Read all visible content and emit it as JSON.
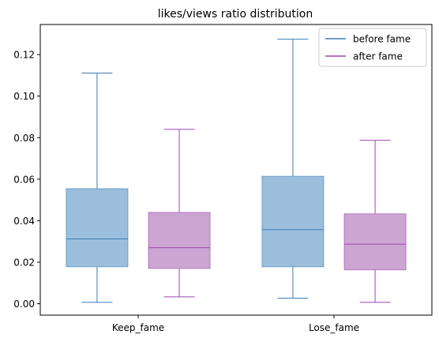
{
  "chart_data": {
    "type": "box",
    "title": "likes/views ratio distribution",
    "xlabel": "",
    "ylabel": "",
    "ylim": [
      -0.0055,
      0.1345
    ],
    "yticks": [
      0.0,
      0.02,
      0.04,
      0.06,
      0.08,
      0.1,
      0.12
    ],
    "ytick_labels": [
      "0.00",
      "0.02",
      "0.04",
      "0.06",
      "0.08",
      "0.10",
      "0.12"
    ],
    "categories": [
      "Keep_fame",
      "Lose_fame"
    ],
    "legend_position": "top-right",
    "grid": false,
    "series": [
      {
        "name": "before fame",
        "color": "#3a7fb8",
        "fill": "#9bbedc",
        "boxes": [
          {
            "whisker_low": 0.0007,
            "q1": 0.0178,
            "median": 0.0312,
            "q3": 0.0554,
            "whisker_high": 0.1111
          },
          {
            "whisker_low": 0.0027,
            "q1": 0.0178,
            "median": 0.0357,
            "q3": 0.0614,
            "whisker_high": 0.1274
          }
        ]
      },
      {
        "name": "after fame",
        "color": "#9b48ac",
        "fill": "#cca5d3",
        "boxes": [
          {
            "whisker_low": 0.0033,
            "q1": 0.017,
            "median": 0.027,
            "q3": 0.044,
            "whisker_high": 0.084
          },
          {
            "whisker_low": 0.0007,
            "q1": 0.0163,
            "median": 0.0287,
            "q3": 0.0433,
            "whisker_high": 0.0787
          }
        ]
      }
    ]
  }
}
